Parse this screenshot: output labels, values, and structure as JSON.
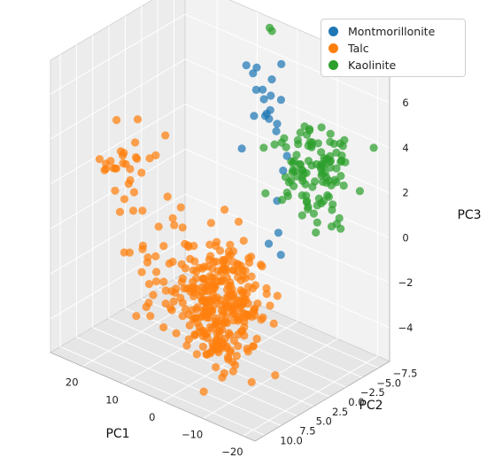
{
  "chart_data": {
    "type": "scatter",
    "projection": "3d",
    "xlabel": "PC1",
    "ylabel": "PC2",
    "zlabel": "PC3",
    "xlim": [
      -23,
      28
    ],
    "ylim": [
      -9.2,
      11.5
    ],
    "zlim": [
      -5.5,
      7.5
    ],
    "xticks": [
      20,
      10,
      0,
      -10,
      -20
    ],
    "yticks": [
      -7.5,
      -5.0,
      -2.5,
      0.0,
      2.5,
      5.0,
      7.5,
      10.0
    ],
    "zticks": [
      -4,
      -2,
      0,
      2,
      4,
      6
    ],
    "xtick_labels": [
      "20",
      "10",
      "0",
      "−10",
      "−20"
    ],
    "ytick_labels": [
      "−7.5",
      "−5.0",
      "−2.5",
      "0.0",
      "2.5",
      "5.0",
      "7.5",
      "10.0"
    ],
    "ztick_labels": [
      "−4",
      "−2",
      "0",
      "2",
      "4",
      "6"
    ],
    "grid": true,
    "legend_position": "top-right",
    "series": [
      {
        "name": "Montmorillonite",
        "color": "#1f77b4",
        "clusters": [
          {
            "center": [
              4,
              -6.5,
              4.8
            ],
            "spread": [
              2.2,
              1.2,
              1.0
            ],
            "count": 18,
            "seed": 11
          },
          {
            "center": [
              -6,
              -3,
              1.5
            ],
            "spread": [
              1.5,
              1.5,
              1.2
            ],
            "count": 6,
            "seed": 12
          }
        ]
      },
      {
        "name": "Talc",
        "color": "#ff7f0e",
        "clusters": [
          {
            "center": [
              -2,
              4,
              -2.2
            ],
            "spread": [
              5,
              1.8,
              1.4
            ],
            "count": 300,
            "seed": 21
          },
          {
            "center": [
              22,
              3,
              1.8
            ],
            "spread": [
              3,
              1.5,
              0.9
            ],
            "count": 30,
            "seed": 22
          },
          {
            "center": [
              13,
              3.5,
              -1.5
            ],
            "spread": [
              3,
              1.8,
              1.2
            ],
            "count": 30,
            "seed": 23
          }
        ]
      },
      {
        "name": "Kaolinite",
        "color": "#2ca02c",
        "clusters": [
          {
            "center": [
              -10,
              -6,
              2.6
            ],
            "spread": [
              4.5,
              1.5,
              1.2
            ],
            "count": 110,
            "seed": 31
          },
          {
            "center": [
              5,
              -9,
              7.2
            ],
            "spread": [
              1,
              0.4,
              0.2
            ],
            "count": 2,
            "seed": 32
          }
        ]
      }
    ]
  }
}
